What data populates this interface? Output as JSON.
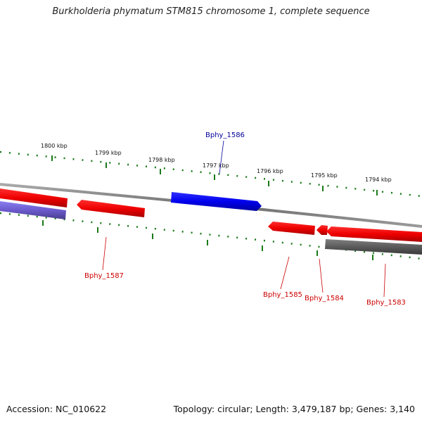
{
  "title": "Burkholderia phymatum STM815 chromosome 1, complete sequence",
  "accession_text": "Accession: NC_010622",
  "topology_text": "Topology: circular; Length: 3,479,187 bp; Genes: 3,140",
  "colors": {
    "backbone": "#7a7a7a",
    "ticks": "#1a7a1a",
    "forward_gene": "#0000ee",
    "reverse_gene": "#ee0000",
    "forward_pseudo": "#6a5acd",
    "reverse_other": "#5a5a5a",
    "label_forward": "#000099",
    "label_reverse": "#cc0000"
  },
  "scale": {
    "unit": "kbp",
    "labels": [
      "1800 kbp",
      "1799 kbp",
      "1798 kbp",
      "1797 kbp",
      "1796 kbp",
      "1795 kbp",
      "1794 kbp"
    ]
  },
  "genes": [
    {
      "name": "Bphy_1586",
      "strand": "forward",
      "color": "blue",
      "labelled": true
    },
    {
      "name": "Bphy_1587",
      "strand": "reverse",
      "color": "red",
      "labelled": true
    },
    {
      "name": "Bphy_1585",
      "strand": "reverse",
      "color": "red",
      "labelled": true
    },
    {
      "name": "Bphy_1584",
      "strand": "reverse",
      "color": "red",
      "labelled": true
    },
    {
      "name": "Bphy_1583",
      "strand": "reverse",
      "color": "red",
      "labelled": true
    },
    {
      "name": "",
      "strand": "forward",
      "color": "slateblue",
      "labelled": false
    },
    {
      "name": "",
      "strand": "reverse",
      "color": "red",
      "labelled": false
    },
    {
      "name": "",
      "strand": "reverse",
      "color": "gray",
      "labelled": false
    }
  ]
}
